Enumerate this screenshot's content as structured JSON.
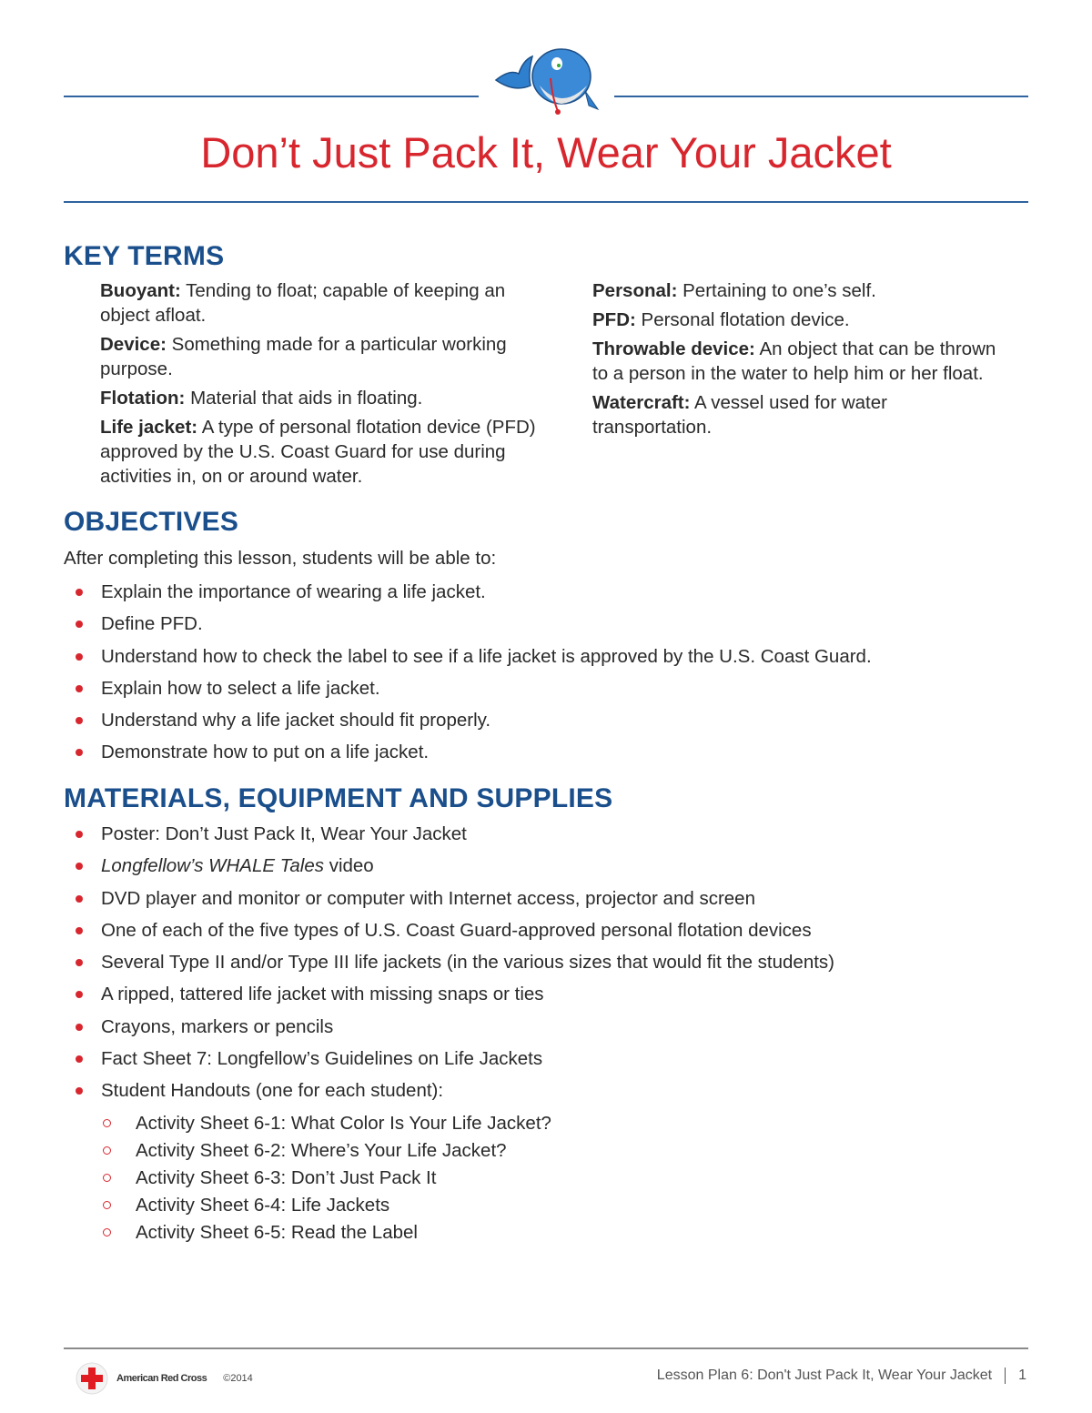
{
  "header": {
    "title": "Don’t Just Pack It, Wear Your Jacket",
    "mascot": "whale-mascot"
  },
  "key_terms": {
    "heading": "KEY TERMS",
    "left": [
      {
        "term": "Buoyant:",
        "def": "Tending to float; capable of keeping an object afloat."
      },
      {
        "term": "Device:",
        "def": "Something made for a particular working purpose."
      },
      {
        "term": "Flotation:",
        "def": "Material that aids in floating."
      },
      {
        "term": "Life jacket:",
        "def": "A type of personal flotation device (PFD) approved by the U.S. Coast Guard for use during activities in, on or around water."
      }
    ],
    "right": [
      {
        "term": "Personal:",
        "def": "Pertaining to one’s self."
      },
      {
        "term": "PFD:",
        "def": "Personal flotation device."
      },
      {
        "term": "Throwable device:",
        "def": "An object that can be thrown to a person in the water to help him or her float."
      },
      {
        "term": "Watercraft:",
        "def": "A vessel used for water transportation."
      }
    ]
  },
  "objectives": {
    "heading": "OBJECTIVES",
    "intro": "After completing this lesson, students will be able to:",
    "items": [
      "Explain the importance of wearing a life jacket.",
      "Define PFD.",
      "Understand how to check the label to see if a life jacket is approved by the U.S. Coast Guard.",
      "Explain how to select a life jacket.",
      "Understand why a life jacket should fit properly.",
      "Demonstrate how to put on a life jacket."
    ]
  },
  "materials": {
    "heading": "MATERIALS, EQUIPMENT AND SUPPLIES",
    "items": [
      {
        "text": "Poster: Don’t Just Pack It, Wear Your Jacket"
      },
      {
        "italic": "Longfellow’s WHALE Tales",
        "text": " video"
      },
      {
        "text": "DVD player and monitor or computer with Internet access, projector and screen"
      },
      {
        "text": "One of each of the five types of U.S. Coast Guard-approved personal flotation devices"
      },
      {
        "text": "Several Type II and/or Type III life jackets (in the various sizes that would fit the students)"
      },
      {
        "text": "A ripped, tattered life jacket with missing snaps or ties"
      },
      {
        "text": "Crayons, markers or pencils"
      },
      {
        "text": "Fact Sheet 7: Longfellow’s Guidelines on Life Jackets"
      },
      {
        "text": "Student Handouts (one for each student):"
      }
    ],
    "sub_items": [
      "Activity Sheet 6-1: What Color Is Your Life Jacket?",
      "Activity Sheet 6-2: Where’s Your Life Jacket?",
      "Activity Sheet 6-3: Don’t Just Pack It",
      "Activity Sheet 6-4: Life Jackets",
      "Activity Sheet 6-5: Read the Label"
    ]
  },
  "footer": {
    "org": "American Red Cross",
    "copyright": "©2014",
    "lesson": "Lesson Plan 6: Don't Just Pack It, Wear Your Jacket",
    "page": "1"
  },
  "colors": {
    "title": "#d8262e",
    "heading": "#1a4f8c",
    "rule": "#2f64a0",
    "bullet": "#d8262e"
  }
}
